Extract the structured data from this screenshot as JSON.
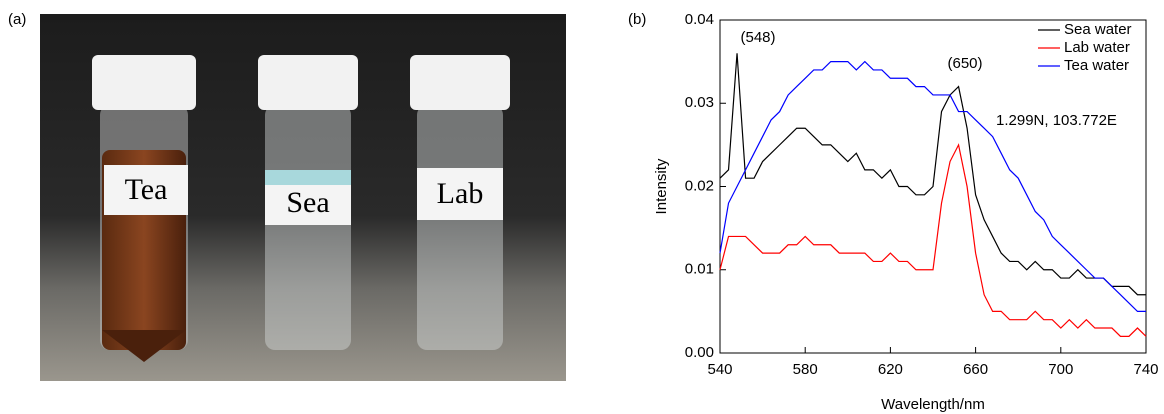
{
  "panels": {
    "a": "(a)",
    "b": "(b)"
  },
  "photo": {
    "labels": [
      "Tea",
      "Sea",
      "Lab"
    ]
  },
  "chart_data": {
    "type": "line",
    "x_label": "Wavelength/nm",
    "y_label": "Intensity",
    "annotations": [
      "(548)",
      "(650)",
      "1.299N, 103.772E"
    ],
    "x": [
      540,
      544,
      548,
      552,
      556,
      560,
      564,
      568,
      572,
      576,
      580,
      584,
      588,
      592,
      596,
      600,
      604,
      608,
      612,
      616,
      620,
      624,
      628,
      632,
      636,
      640,
      644,
      648,
      652,
      656,
      660,
      664,
      668,
      672,
      676,
      680,
      684,
      688,
      692,
      696,
      700,
      704,
      708,
      712,
      716,
      720,
      724,
      728,
      732,
      736,
      740
    ],
    "series": [
      {
        "name": "Sea water",
        "color": "#000000",
        "values": [
          0.021,
          0.022,
          0.036,
          0.021,
          0.021,
          0.023,
          0.024,
          0.025,
          0.026,
          0.027,
          0.027,
          0.026,
          0.025,
          0.025,
          0.024,
          0.023,
          0.024,
          0.022,
          0.022,
          0.021,
          0.022,
          0.02,
          0.02,
          0.019,
          0.019,
          0.02,
          0.029,
          0.031,
          0.032,
          0.027,
          0.019,
          0.016,
          0.014,
          0.012,
          0.011,
          0.011,
          0.01,
          0.011,
          0.01,
          0.01,
          0.009,
          0.009,
          0.01,
          0.009,
          0.009,
          0.009,
          0.008,
          0.008,
          0.008,
          0.007,
          0.007
        ]
      },
      {
        "name": "Lab water",
        "color": "#ff0000",
        "values": [
          0.01,
          0.014,
          0.014,
          0.014,
          0.013,
          0.012,
          0.012,
          0.012,
          0.013,
          0.013,
          0.014,
          0.013,
          0.013,
          0.013,
          0.012,
          0.012,
          0.012,
          0.012,
          0.011,
          0.011,
          0.012,
          0.011,
          0.011,
          0.01,
          0.01,
          0.01,
          0.018,
          0.023,
          0.025,
          0.02,
          0.012,
          0.007,
          0.005,
          0.005,
          0.004,
          0.004,
          0.004,
          0.005,
          0.004,
          0.004,
          0.003,
          0.004,
          0.003,
          0.004,
          0.003,
          0.003,
          0.003,
          0.002,
          0.002,
          0.003,
          0.002
        ]
      },
      {
        "name": "Tea water",
        "color": "#0000ff",
        "values": [
          0.012,
          0.018,
          0.02,
          0.022,
          0.024,
          0.026,
          0.028,
          0.029,
          0.031,
          0.032,
          0.033,
          0.034,
          0.034,
          0.035,
          0.035,
          0.035,
          0.034,
          0.035,
          0.034,
          0.034,
          0.033,
          0.033,
          0.033,
          0.032,
          0.032,
          0.031,
          0.031,
          0.031,
          0.029,
          0.029,
          0.028,
          0.027,
          0.026,
          0.024,
          0.022,
          0.021,
          0.019,
          0.017,
          0.016,
          0.014,
          0.013,
          0.012,
          0.011,
          0.01,
          0.009,
          0.009,
          0.008,
          0.007,
          0.006,
          0.005,
          0.005
        ]
      }
    ],
    "xlim": [
      540,
      740
    ],
    "xticks": [
      540,
      580,
      620,
      660,
      700,
      740
    ],
    "ylim": [
      0,
      0.04
    ],
    "yticks": [
      {
        "value": 0,
        "label": "0.00"
      },
      0.01,
      0.02,
      0.03,
      0.04
    ],
    "legend": "upper right"
  }
}
